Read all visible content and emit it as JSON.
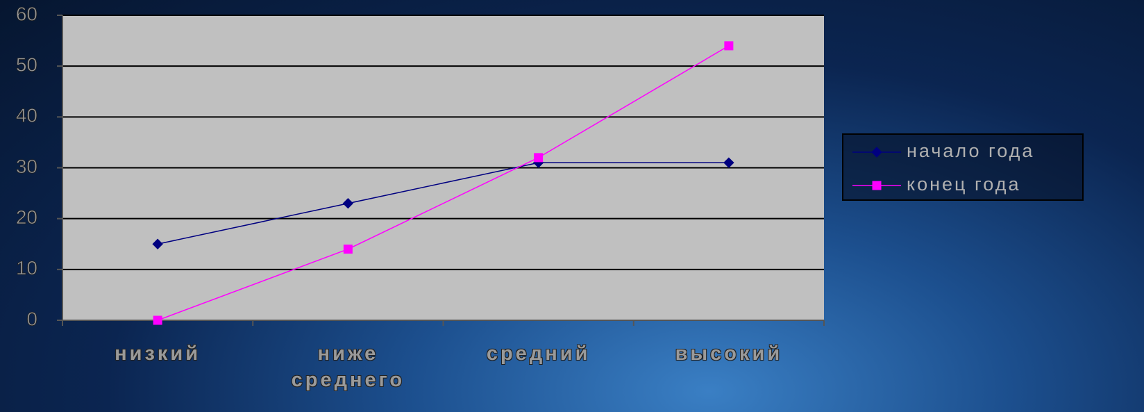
{
  "chart_data": {
    "type": "line",
    "categories": [
      "низкий",
      "ниже среднего",
      "средний",
      "высокий"
    ],
    "series": [
      {
        "name": "начало года",
        "color": "#000080",
        "marker": "diamond",
        "values": [
          15,
          23,
          31,
          31
        ]
      },
      {
        "name": "конец года",
        "color": "#ff00ff",
        "marker": "square",
        "values": [
          0,
          14,
          32,
          54
        ]
      }
    ],
    "ylim": [
      0,
      60
    ],
    "yticks": [
      0,
      10,
      20,
      30,
      40,
      50,
      60
    ],
    "grid": true,
    "legend": "right"
  }
}
